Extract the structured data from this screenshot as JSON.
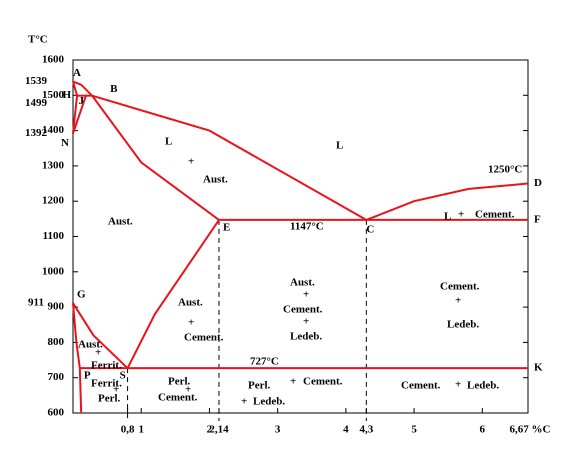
{
  "axes": {
    "y_title": "T°C",
    "xlim": [
      0,
      6.67
    ],
    "ylim": [
      600,
      1600
    ],
    "yticks": [
      600,
      700,
      800,
      900,
      1000,
      1100,
      1200,
      1300,
      1400,
      1500,
      1600
    ],
    "xticks": [
      {
        "value": 0.8,
        "label": "0,8"
      },
      1,
      2,
      {
        "value": 2.14,
        "label": "2,14"
      },
      3,
      4,
      {
        "value": 4.3,
        "label": "4,3"
      },
      5,
      6,
      {
        "value": 6.67,
        "label": "6,67 %C"
      }
    ],
    "special_temps": [
      1539,
      1499,
      1392,
      911
    ],
    "color": "#e8141c"
  },
  "points": [
    {
      "label": "A",
      "x": 0,
      "y": 1539
    },
    {
      "label": "B",
      "x": 0.28,
      "y": 1499
    },
    {
      "label": "H",
      "x": 0.06,
      "y": 1499
    },
    {
      "label": "J",
      "x": 0.19,
      "y": 1499
    },
    {
      "label": "N",
      "x": 0,
      "y": 1392
    },
    {
      "label": "G",
      "x": 0,
      "y": 911
    },
    {
      "label": "P",
      "x": 0.1,
      "y": 727
    },
    {
      "label": "S",
      "x": 0.8,
      "y": 727
    },
    {
      "label": "E",
      "x": 2.14,
      "y": 1147
    },
    {
      "label": "C",
      "x": 4.3,
      "y": 1147
    },
    {
      "label": "D",
      "x": 6.67,
      "y": 1250
    },
    {
      "label": "F",
      "x": 6.67,
      "y": 1147
    },
    {
      "label": "K",
      "x": 6.67,
      "y": 727
    }
  ],
  "curves": [
    {
      "x": [
        0,
        0.12,
        0.28
      ],
      "y": [
        1539,
        1530,
        1499
      ]
    },
    {
      "x": [
        0.06,
        0.28
      ],
      "y": [
        1499,
        1499
      ]
    },
    {
      "x": [
        0,
        0.06
      ],
      "y": [
        1539,
        1499
      ]
    },
    {
      "x": [
        0.06,
        0
      ],
      "y": [
        1499,
        1392
      ]
    },
    {
      "x": [
        0.19,
        0
      ],
      "y": [
        1499,
        1392
      ]
    },
    {
      "x": [
        0.28,
        2,
        4.3
      ],
      "y": [
        1499,
        1400,
        1147
      ]
    },
    {
      "x": [
        0.28,
        1,
        2.14
      ],
      "y": [
        1499,
        1310,
        1147
      ]
    },
    {
      "x": [
        4.3,
        5,
        5.8,
        6.67
      ],
      "y": [
        1147,
        1200,
        1235,
        1250
      ]
    },
    {
      "x": [
        2.14,
        6.67
      ],
      "y": [
        1147,
        1147
      ]
    },
    {
      "x": [
        0,
        0.3,
        0.8
      ],
      "y": [
        911,
        820,
        727
      ]
    },
    {
      "x": [
        0,
        0.05,
        0.1
      ],
      "y": [
        911,
        800,
        727
      ]
    },
    {
      "x": [
        0.8,
        1.2,
        2.14
      ],
      "y": [
        727,
        880,
        1147
      ]
    },
    {
      "x": [
        0.1,
        6.67
      ],
      "y": [
        727,
        727
      ]
    },
    {
      "x": [
        0.1,
        0.12
      ],
      "y": [
        727,
        600
      ]
    }
  ],
  "labels": [
    "L",
    "+",
    "Aust.",
    "L",
    "Aust.",
    "1147°C",
    "L",
    "+",
    "Cement.",
    "1250°C",
    "Aust.",
    "+",
    "Cement.",
    "Aust.",
    "+",
    "Cement.",
    "+",
    "Ledeb.",
    "Cement.",
    "+",
    "Ledeb.",
    "727°C",
    "Aust.",
    "+",
    "Ferrit.",
    "Ferrit.",
    "+",
    "Perl.",
    "Perl.",
    "+",
    "Cement.",
    "Perl.",
    "+",
    "Cement.",
    "+",
    "Ledeb.",
    "Cement.",
    "+",
    "Ledeb."
  ]
}
